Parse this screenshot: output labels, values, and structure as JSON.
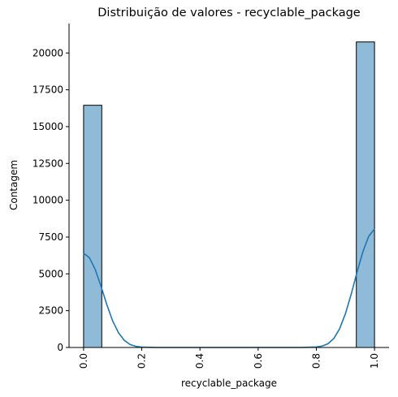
{
  "chart_data": {
    "type": "bar",
    "title": "Distribuição de valores - recyclable_package",
    "xlabel": "recyclable_package",
    "ylabel": "Contagem",
    "xlim": [
      -0.05,
      1.05
    ],
    "ylim": [
      0,
      22000
    ],
    "xticks": [
      0.0,
      0.2,
      0.4,
      0.6,
      0.8,
      1.0
    ],
    "xtick_labels": [
      "0.0",
      "0.2",
      "0.4",
      "0.6",
      "0.8",
      "1.0"
    ],
    "yticks": [
      0,
      2500,
      5000,
      7500,
      10000,
      12500,
      15000,
      17500,
      20000
    ],
    "ytick_labels": [
      "0",
      "2500",
      "5000",
      "7500",
      "10000",
      "12500",
      "15000",
      "17500",
      "20000"
    ],
    "bins": [
      {
        "x0": 0.0,
        "x1": 0.0625,
        "count": 16450
      },
      {
        "x0": 0.9375,
        "x1": 1.0,
        "count": 20750
      }
    ],
    "kde": {
      "x": [
        0.0,
        0.02,
        0.04,
        0.06,
        0.08,
        0.1,
        0.12,
        0.14,
        0.16,
        0.18,
        0.2,
        0.25,
        0.3,
        0.4,
        0.5,
        0.6,
        0.7,
        0.75,
        0.8,
        0.82,
        0.84,
        0.86,
        0.88,
        0.9,
        0.92,
        0.94,
        0.96,
        0.98,
        1.0
      ],
      "y": [
        6400,
        6100,
        5300,
        4150,
        2900,
        1800,
        1000,
        480,
        200,
        75,
        25,
        0,
        0,
        0,
        0,
        0,
        0,
        0,
        30,
        95,
        255,
        610,
        1270,
        2290,
        3630,
        5120,
        6500,
        7550,
        8050
      ]
    },
    "colors": {
      "bar": "#1f77b4",
      "kde": "#1f77b4"
    },
    "grid": false,
    "legend": "none"
  }
}
